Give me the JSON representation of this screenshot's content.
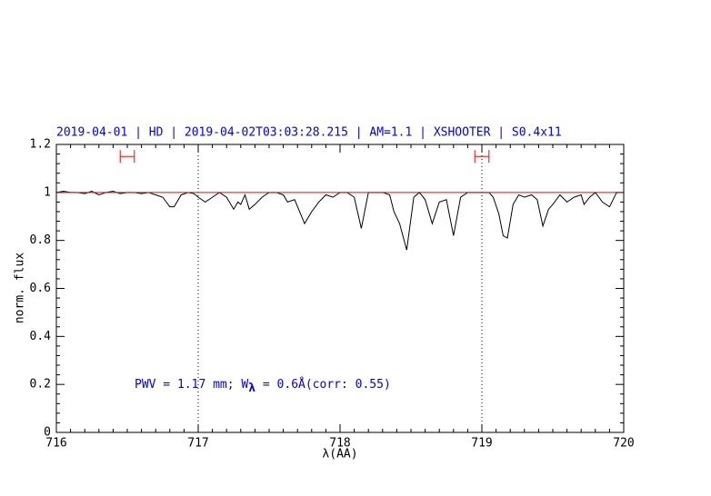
{
  "chart_data": {
    "type": "line",
    "title": "2019-04-01 | HD | 2019-04-02T03:03:28.215 | AM=1.1 | XSHOOTER | S0.4x11",
    "x_label": "λ(AA)",
    "y_label": "norm. flux",
    "annotation": [
      "PWV = 1.17 mm; W",
      "λ",
      " = 0.6Å(corr: 0.55)"
    ],
    "annotation_color": "#0000ff",
    "title_color": "#0000ff",
    "xlim": [
      716,
      720
    ],
    "ylim": [
      0,
      1.2
    ],
    "xticks": [
      716,
      717,
      718,
      719,
      720
    ],
    "yticks": [
      0,
      0.2,
      0.4,
      0.6,
      0.8,
      1,
      1.2
    ],
    "vlines": [
      717,
      719
    ],
    "range_markers": [
      {
        "x": [
          716.45,
          716.55
        ],
        "y": 1.15,
        "color": "#ff0000"
      },
      {
        "x": [
          718.95,
          719.05
        ],
        "y": 1.15,
        "color": "#ff0000"
      }
    ],
    "series": [
      {
        "name": "spectrum",
        "color": "#000000",
        "x": [
          716.0,
          716.05,
          716.1,
          716.15,
          716.2,
          716.25,
          716.3,
          716.35,
          716.4,
          716.45,
          716.5,
          716.55,
          716.6,
          716.65,
          716.7,
          716.75,
          716.8,
          716.83,
          716.88,
          716.93,
          716.97,
          717.0,
          717.05,
          717.1,
          717.15,
          717.2,
          717.25,
          717.28,
          717.3,
          717.33,
          717.36,
          717.4,
          717.45,
          717.5,
          717.55,
          717.6,
          717.63,
          717.68,
          717.75,
          717.8,
          717.85,
          717.9,
          717.95,
          718.0,
          718.05,
          718.1,
          718.15,
          718.2,
          718.25,
          718.3,
          718.35,
          718.38,
          718.42,
          718.47,
          718.52,
          718.56,
          718.6,
          718.65,
          718.7,
          718.75,
          718.8,
          718.85,
          718.9,
          718.95,
          719.0,
          719.05,
          719.08,
          719.12,
          719.15,
          719.18,
          719.22,
          719.26,
          719.3,
          719.35,
          719.39,
          719.43,
          719.47,
          719.5,
          719.55,
          719.6,
          719.65,
          719.7,
          719.72,
          719.76,
          719.8,
          719.85,
          719.9,
          719.95,
          720.0
        ],
        "values": [
          1.0,
          1.005,
          1.0,
          1.0,
          0.995,
          1.005,
          0.99,
          1.0,
          1.005,
          0.995,
          1.0,
          1.0,
          0.995,
          1.0,
          0.99,
          0.98,
          0.94,
          0.94,
          0.99,
          1.0,
          0.995,
          0.98,
          0.96,
          0.98,
          1.0,
          0.98,
          0.93,
          0.96,
          0.95,
          0.99,
          0.93,
          0.95,
          0.98,
          1.0,
          1.0,
          0.99,
          0.96,
          0.97,
          0.87,
          0.92,
          0.96,
          0.99,
          0.98,
          1.0,
          1.0,
          0.98,
          0.85,
          1.0,
          1.0,
          1.0,
          0.99,
          0.92,
          0.87,
          0.76,
          0.98,
          1.0,
          0.97,
          0.87,
          0.96,
          0.97,
          0.82,
          0.98,
          1.0,
          1.0,
          1.0,
          1.0,
          0.98,
          0.91,
          0.82,
          0.81,
          0.95,
          0.99,
          0.98,
          0.99,
          0.97,
          0.86,
          0.93,
          0.95,
          0.99,
          0.96,
          0.98,
          0.99,
          0.95,
          0.98,
          1.0,
          0.96,
          0.94,
          1.0,
          1.0
        ]
      },
      {
        "name": "continuum",
        "color": "#ff0000",
        "x": [
          716,
          720
        ],
        "values": [
          1,
          1
        ]
      }
    ]
  }
}
